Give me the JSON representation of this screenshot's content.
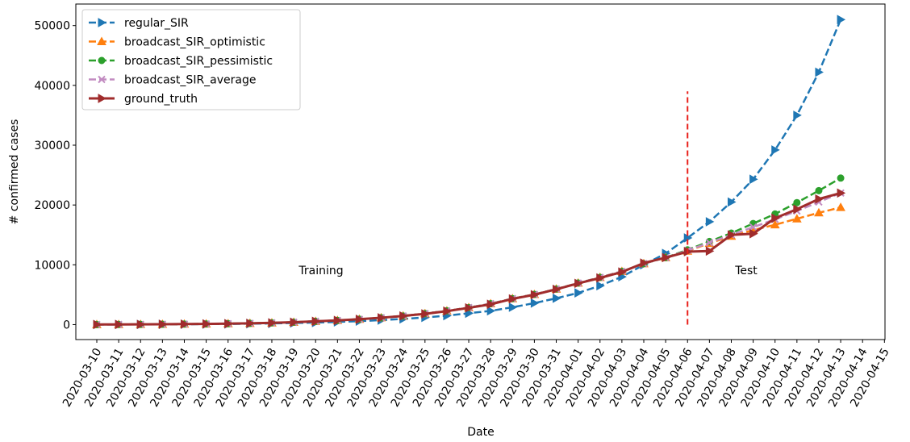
{
  "chart_data": {
    "type": "line",
    "xlabel": "Date",
    "ylabel": "# confirmed cases",
    "annotations": [
      "Training",
      "Test"
    ],
    "categories": [
      "2020-03-10",
      "2020-03-11",
      "2020-03-12",
      "2020-03-13",
      "2020-03-14",
      "2020-03-15",
      "2020-03-16",
      "2020-03-17",
      "2020-03-18",
      "2020-03-19",
      "2020-03-20",
      "2020-03-21",
      "2020-03-22",
      "2020-03-23",
      "2020-03-24",
      "2020-03-25",
      "2020-03-26",
      "2020-03-27",
      "2020-03-28",
      "2020-03-29",
      "2020-03-30",
      "2020-03-31",
      "2020-04-01",
      "2020-04-02",
      "2020-04-03",
      "2020-04-04",
      "2020-04-05",
      "2020-04-06",
      "2020-04-07",
      "2020-04-08",
      "2020-04-09",
      "2020-04-10",
      "2020-04-11",
      "2020-04-12",
      "2020-04-13",
      "2020-04-14",
      "2020-04-15"
    ],
    "ylim": [
      -2500,
      53600
    ],
    "yticks": [
      0,
      10000,
      20000,
      30000,
      40000,
      50000
    ],
    "legend": "upper left",
    "vline": {
      "x": "2020-04-06",
      "ymin": 0,
      "ymax": 39000,
      "color": "#e8201b"
    },
    "series": [
      {
        "name": "regular_SIR",
        "color": "#1f77b4",
        "dash": true,
        "marker": "tri-right",
        "values": [
          10,
          20,
          30,
          40,
          60,
          80,
          110,
          150,
          200,
          270,
          350,
          450,
          580,
          750,
          950,
          1200,
          1500,
          1900,
          2300,
          2900,
          3600,
          4400,
          5300,
          6500,
          8000,
          10000,
          11900,
          14500,
          17200,
          20500,
          24300,
          29200,
          35000,
          42200,
          51000,
          null,
          null
        ]
      },
      {
        "name": "broadcast_SIR_optimistic",
        "color": "#ff7f0e",
        "dash": true,
        "marker": "tri-up",
        "values": [
          20,
          30,
          40,
          60,
          90,
          120,
          160,
          220,
          300,
          400,
          550,
          700,
          900,
          1150,
          1450,
          1850,
          2300,
          2850,
          3500,
          4350,
          5050,
          5950,
          6950,
          7900,
          8900,
          10200,
          11200,
          12300,
          13600,
          14800,
          15800,
          16700,
          17700,
          18700,
          19600,
          null,
          null
        ]
      },
      {
        "name": "broadcast_SIR_pessimistic",
        "color": "#2ca02c",
        "dash": true,
        "marker": "circle",
        "values": [
          20,
          30,
          40,
          60,
          90,
          120,
          160,
          220,
          300,
          400,
          550,
          700,
          900,
          1150,
          1450,
          1850,
          2300,
          2850,
          3500,
          4350,
          5050,
          5950,
          6950,
          7900,
          8900,
          10200,
          11200,
          12500,
          13900,
          15300,
          16900,
          18500,
          20400,
          22400,
          24500,
          null,
          null
        ]
      },
      {
        "name": "broadcast_SIR_average",
        "color": "#c28bc1",
        "dash": true,
        "marker": "x",
        "values": [
          20,
          30,
          40,
          60,
          90,
          120,
          160,
          220,
          300,
          400,
          550,
          700,
          900,
          1150,
          1450,
          1850,
          2300,
          2850,
          3500,
          4350,
          5050,
          5950,
          6950,
          7900,
          8900,
          10200,
          11200,
          12400,
          13700,
          15000,
          16300,
          17600,
          19000,
          20500,
          22000,
          null,
          null
        ]
      },
      {
        "name": "ground_truth",
        "color": "#a02c2c",
        "dash": false,
        "marker": "tri-right",
        "values": [
          20,
          30,
          40,
          60,
          90,
          120,
          160,
          220,
          300,
          400,
          550,
          700,
          900,
          1150,
          1450,
          1800,
          2250,
          2800,
          3400,
          4300,
          5000,
          5900,
          6900,
          7800,
          8800,
          10300,
          11200,
          12200,
          12300,
          15000,
          15200,
          17800,
          19300,
          21000,
          22000,
          null,
          null
        ]
      }
    ]
  }
}
